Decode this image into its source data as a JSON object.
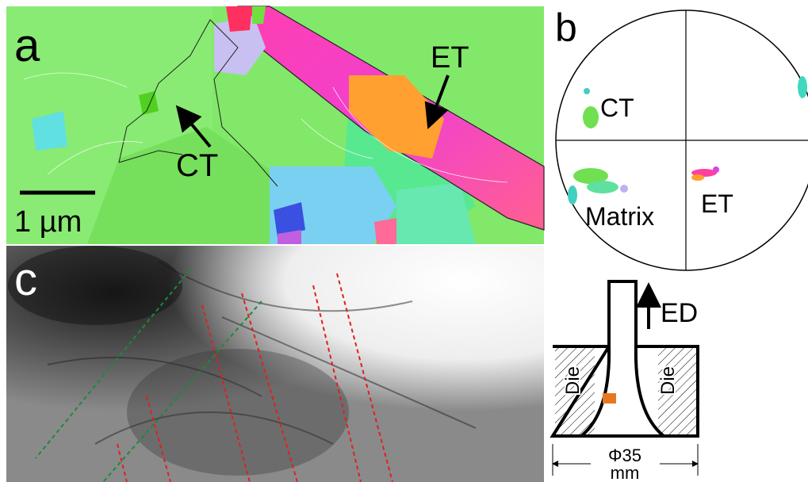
{
  "panels": {
    "a": {
      "label": "a",
      "annotations": [
        "ET",
        "CT"
      ],
      "scale_bar": "1 µm"
    },
    "b": {
      "label": "b",
      "labels": [
        "CT",
        "Matrix",
        "ET"
      ]
    },
    "c": {
      "label": "c"
    },
    "schematic": {
      "direction": "ED",
      "die_labels": [
        "Die",
        "Die"
      ],
      "dimension": "Φ35",
      "unit": "mm"
    }
  }
}
